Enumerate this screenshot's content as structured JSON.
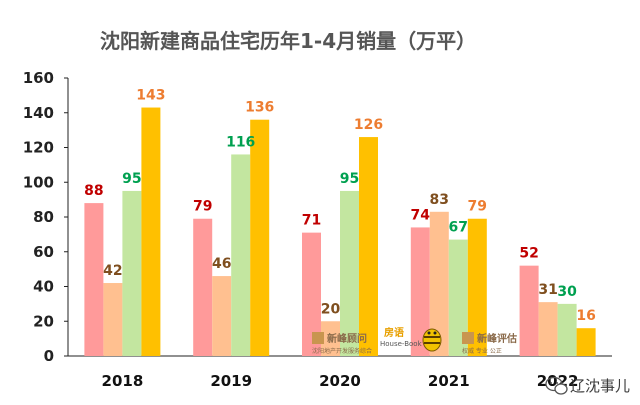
{
  "chart_data": {
    "type": "bar",
    "title": "沈阳新建商品住宅历年1-4月销量（万平）",
    "categories": [
      "2018",
      "2019",
      "2020",
      "2021",
      "2022"
    ],
    "series": [
      {
        "values": [
          88,
          79,
          71,
          74,
          52
        ],
        "color": "#ff9a9a",
        "label_color": "#c00000"
      },
      {
        "values": [
          42,
          46,
          20,
          83,
          31
        ],
        "color": "#ffc090",
        "label_color": "#7f4f1f"
      },
      {
        "values": [
          95,
          116,
          95,
          67,
          30
        ],
        "color": "#c3e6a0",
        "label_color": "#00a050"
      },
      {
        "values": [
          143,
          136,
          126,
          79,
          16
        ],
        "color": "#ffc000",
        "label_color": "#ed7d31"
      }
    ],
    "ylim": [
      0,
      160
    ],
    "yticks": [
      0,
      20,
      40,
      60,
      80,
      100,
      120,
      140,
      160
    ],
    "xlabel": "",
    "ylabel": "",
    "grid": false,
    "legend": "none"
  },
  "watermarks": {
    "wm1_main": "新峰顾问",
    "wm1_sub": "沈阳地产开发服务综合",
    "wm2_main": "房语",
    "wm2_sub": "House-Book",
    "wm3_main": "新峰评估",
    "wm3_sub": "权威 专业 公正"
  },
  "brand": {
    "icon": "wechat-icon",
    "text": "辽沈事儿"
  }
}
